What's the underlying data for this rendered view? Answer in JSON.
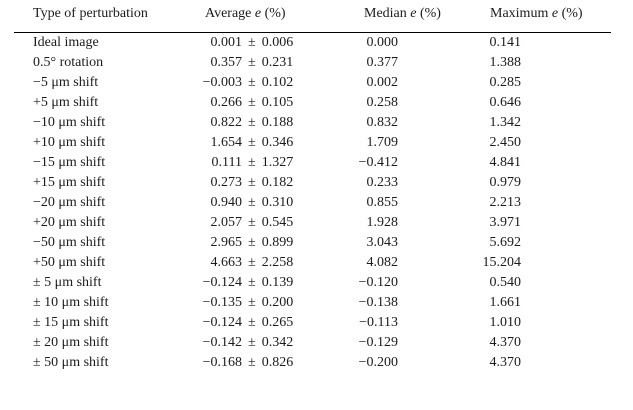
{
  "header": {
    "col_type": "Type of perturbation",
    "col_avg": {
      "name": "Average",
      "symbol": "e",
      "unit": "(%)"
    },
    "col_median": {
      "name": "Median",
      "symbol": "e",
      "unit": "(%)"
    },
    "col_max": {
      "name": "Maximum",
      "symbol": "e",
      "unit": "(%)"
    }
  },
  "pm_symbol": "±",
  "rows": [
    {
      "type": "Ideal image",
      "avg": "0.001",
      "std": "0.006",
      "median": "0.000",
      "max": "0.141"
    },
    {
      "type": "0.5° rotation",
      "avg": "0.357",
      "std": "0.231",
      "median": "0.377",
      "max": "1.388"
    },
    {
      "type": "−5 μm shift",
      "avg": "−0.003",
      "std": "0.102",
      "median": "0.002",
      "max": "0.285"
    },
    {
      "type": "+5 μm shift",
      "avg": "0.266",
      "std": "0.105",
      "median": "0.258",
      "max": "0.646"
    },
    {
      "type": "−10 μm shift",
      "avg": "0.822",
      "std": "0.188",
      "median": "0.832",
      "max": "1.342"
    },
    {
      "type": "+10 μm shift",
      "avg": "1.654",
      "std": "0.346",
      "median": "1.709",
      "max": "2.450"
    },
    {
      "type": "−15 μm shift",
      "avg": "0.111",
      "std": "1.327",
      "median": "−0.412",
      "max": "4.841"
    },
    {
      "type": "+15 μm shift",
      "avg": "0.273",
      "std": "0.182",
      "median": "0.233",
      "max": "0.979"
    },
    {
      "type": "−20 μm shift",
      "avg": "0.940",
      "std": "0.310",
      "median": "0.855",
      "max": "2.213"
    },
    {
      "type": "+20 μm shift",
      "avg": "2.057",
      "std": "0.545",
      "median": "1.928",
      "max": "3.971"
    },
    {
      "type": "−50 μm shift",
      "avg": "2.965",
      "std": "0.899",
      "median": "3.043",
      "max": "5.692"
    },
    {
      "type": "+50 μm shift",
      "avg": "4.663",
      "std": "2.258",
      "median": "4.082",
      "max": "15.204"
    },
    {
      "type": "± 5 μm shift",
      "avg": "−0.124",
      "std": "0.139",
      "median": "−0.120",
      "max": "0.540"
    },
    {
      "type": "± 10 μm shift",
      "avg": "−0.135",
      "std": "0.200",
      "median": "−0.138",
      "max": "1.661"
    },
    {
      "type": "± 15 μm shift",
      "avg": "−0.124",
      "std": "0.265",
      "median": "−0.113",
      "max": "1.010"
    },
    {
      "type": "± 20 μm shift",
      "avg": "−0.142",
      "std": "0.342",
      "median": "−0.129",
      "max": "4.370"
    },
    {
      "type": "± 50 μm shift",
      "avg": "−0.168",
      "std": "0.826",
      "median": "−0.200",
      "max": "4.370"
    }
  ]
}
